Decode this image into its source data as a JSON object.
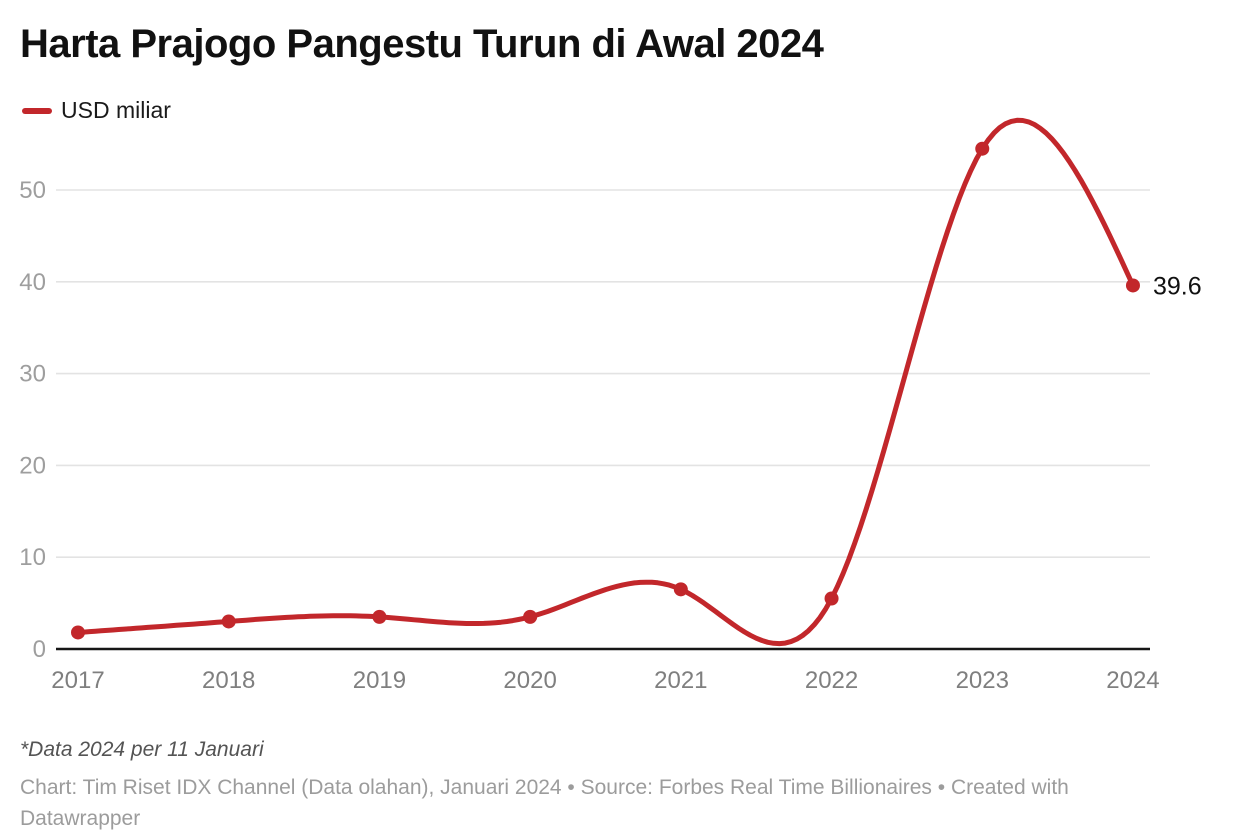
{
  "chart": {
    "title": "Harta Prajogo Pangestu Turun di Awal 2024",
    "legend_label": "USD miliar",
    "end_label": "39.6",
    "footnote": "*Data 2024 per 11 Januari",
    "byline": "Chart: Tim Riset IDX Channel (Data olahan), Januari 2024 • Source: Forbes Real Time Billionaires • Created with Datawrapper",
    "accent_color": "#c2272b"
  },
  "chart_data": {
    "type": "line",
    "title": "Harta Prajogo Pangestu Turun di Awal 2024",
    "categories": [
      2017,
      2018,
      2019,
      2020,
      2021,
      2022,
      2023,
      2024
    ],
    "series": [
      {
        "name": "USD miliar",
        "values": [
          1.8,
          3,
          3.5,
          3.5,
          6.5,
          5.5,
          54.5,
          39.6
        ]
      }
    ],
    "xlabel": "",
    "ylabel": "USD miliar",
    "yticks": [
      0,
      10,
      20,
      30,
      40,
      50
    ],
    "ylim": [
      0,
      58
    ],
    "grid": "horizontal",
    "curve": "natural-spline",
    "legend_position": "top-left",
    "line_color": "#c2272b",
    "end_point_label": "39.6",
    "annotations": [
      "*Data 2024 per 11 Januari"
    ]
  }
}
